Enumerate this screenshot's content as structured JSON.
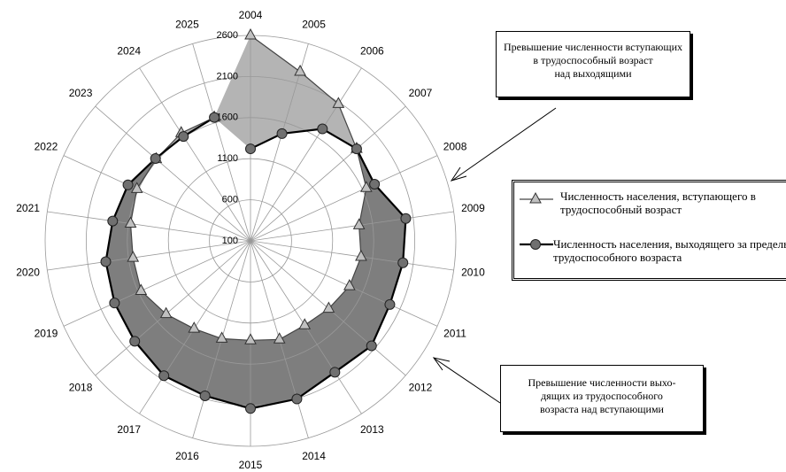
{
  "chart_data": {
    "type": "radar",
    "categories": [
      "2004",
      "2005",
      "2006",
      "2007",
      "2008",
      "2009",
      "2010",
      "2011",
      "2012",
      "2013",
      "2014",
      "2015",
      "2016",
      "2017",
      "2018",
      "2019",
      "2020",
      "2021",
      "2022",
      "2023",
      "2024",
      "2025"
    ],
    "ylim": [
      100,
      2600
    ],
    "yticks": [
      100,
      600,
      1100,
      1600,
      2100,
      2600
    ],
    "grid": true,
    "series": [
      {
        "name": "Численность населения, вступающего в трудоспособный возраст",
        "color": "#c0c0c0",
        "marker": "triangle",
        "values": [
          2600,
          2245,
          2080,
          1810,
          1650,
          1435,
          1460,
          1425,
          1360,
          1320,
          1350,
          1310,
          1340,
          1370,
          1460,
          1565,
          1545,
          1575,
          1620,
          1620,
          1660,
          1665
        ]
      },
      {
        "name": "Численность населения, выходящего за пределы трудоспособного возраста",
        "color": "#707070",
        "marker": "circle",
        "values": [
          1220,
          1460,
          1720,
          1810,
          1760,
          2010,
          1975,
          1965,
          2050,
          2000,
          2105,
          2140,
          2065,
          2050,
          1965,
          1920,
          1880,
          1795,
          1740,
          1630,
          1610,
          1665
        ]
      }
    ],
    "area_colors": [
      "#b4b4b4",
      "#7e7e7e"
    ],
    "annotations": [
      {
        "lines": [
          "Превышение численности вступающих",
          "в трудоспособный возраст",
          "над выходящими"
        ]
      },
      {
        "lines": [
          "Превышение численности выхо-",
          "дящих из трудоспособного",
          "возраста над вступающими"
        ]
      }
    ]
  }
}
